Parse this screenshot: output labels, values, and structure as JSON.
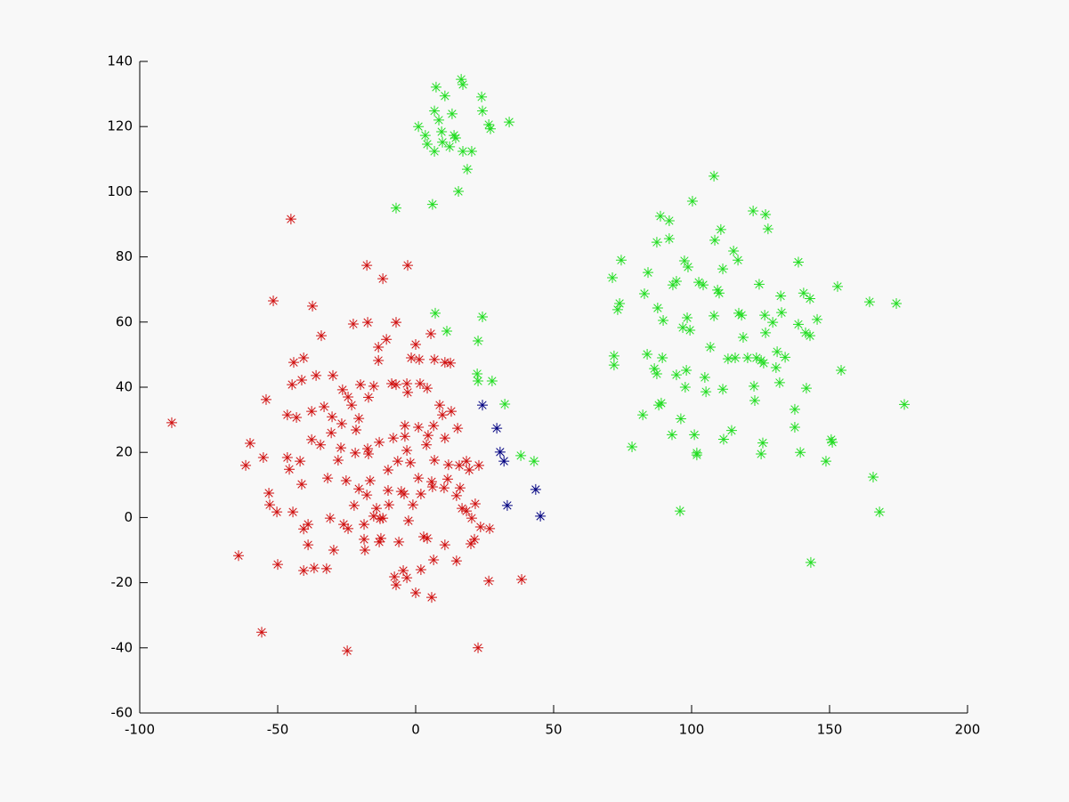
{
  "chart_data": {
    "type": "scatter",
    "xlim": [
      -100,
      200
    ],
    "xticks": [
      -100,
      -50,
      0,
      50,
      100,
      150,
      200
    ],
    "ylim": [
      -60,
      140
    ],
    "yticks": [
      -60,
      -40,
      -20,
      0,
      20,
      40,
      60,
      80,
      100,
      120,
      140
    ],
    "grid": false,
    "series": [
      {
        "color": "#d01010",
        "x": [
          -88.4,
          -45.2,
          -51.6,
          -37.4,
          -17.7,
          -11.9,
          -2.9,
          -22.6,
          -17.4,
          -34.2,
          -7.1,
          5.5,
          0,
          -13.5,
          -10.6,
          -13.5,
          -1.6,
          1.3,
          6.8,
          10.6,
          12.6,
          -40.6,
          -36.1,
          -41.3,
          -44.8,
          -44.2,
          -30.0,
          -26.5,
          -23.2,
          -20.6,
          -17.1,
          -15.2,
          -8.7,
          -7.1,
          -3.2,
          -2.9,
          1.6,
          4.2,
          8.7,
          9.7,
          12.9,
          15.2,
          6.5,
          4.5,
          1.0,
          -3.9,
          -3.9,
          -8.1,
          -13.2,
          -17.4,
          -21.6,
          -26.8,
          -30.3,
          -33.2,
          -37.7,
          -43.2,
          -46.5,
          -54.2,
          -60.0,
          -61.6,
          -55.2,
          -46.5,
          -41.9,
          -37.7,
          -34.5,
          -28.1,
          -31.9,
          -41.3,
          -45.8,
          -53.2,
          -50.3,
          -52.9,
          -44.5,
          -39.0,
          -40.6,
          -39.0,
          -31.0,
          -26.1,
          -22.3,
          -18.7,
          -18.7,
          -15.2,
          -12.6,
          -6.1,
          -2.6,
          -1.0,
          -4.2,
          1.9,
          5.8,
          11.6,
          14.8,
          16.8,
          20.3,
          23.5,
          21.3,
          20.0,
          10.6,
          6.5,
          2.9,
          1.9,
          -4.5,
          -7.1,
          -7.7,
          -3.2,
          4.2,
          14.8,
          26.8,
          26.5,
          38.4,
          22.6,
          0,
          5.8,
          -13.2,
          -12.9,
          -18.4,
          -24.5,
          -29.7,
          -32.3,
          -40.6,
          -36.8,
          -50.0,
          -64.2,
          -55.8,
          -24.8,
          -11.9,
          -9.7,
          -14.2,
          -17.7,
          -20.6,
          -25.2,
          -21.9,
          -17.1,
          -10.0,
          -6.5,
          -3.2,
          -5.2,
          -1.9,
          6.1,
          10.3,
          15.8,
          18.4,
          22.9,
          19.4,
          21.6,
          18.4,
          16.1,
          11.9,
          6.8,
          10.6,
          3.9,
          1.0,
          -10.0,
          -16.5,
          -27.1,
          -30.6,
          -24.5,
          -20.0
        ],
        "values": [
          29.1,
          91.6,
          66.5,
          64.9,
          77.4,
          73.3,
          77.4,
          59.4,
          59.9,
          55.8,
          59.9,
          56.4,
          53.1,
          52.3,
          54.7,
          48.2,
          49.0,
          48.5,
          48.5,
          47.6,
          47.4,
          49.0,
          43.6,
          42.2,
          40.8,
          47.6,
          43.6,
          39.2,
          34.5,
          30.4,
          36.9,
          40.3,
          41.1,
          40.8,
          41.1,
          38.4,
          41.1,
          39.7,
          34.5,
          31.5,
          32.6,
          27.4,
          28.2,
          25.2,
          27.7,
          28.2,
          24.9,
          24.4,
          23.1,
          21.1,
          26.9,
          28.8,
          30.9,
          34.0,
          32.6,
          30.7,
          31.5,
          36.2,
          22.8,
          16.0,
          18.4,
          18.4,
          17.3,
          23.9,
          22.3,
          17.6,
          12.1,
          10.2,
          14.8,
          7.5,
          1.7,
          3.9,
          1.7,
          -2.1,
          -3.5,
          -8.4,
          -0.2,
          -2.1,
          3.7,
          -2.1,
          -6.7,
          0.4,
          -6.4,
          -7.5,
          -1.0,
          3.9,
          7.2,
          7.2,
          11.0,
          11.8,
          6.7,
          2.8,
          -0.2,
          -2.9,
          -6.7,
          -8.1,
          -8.4,
          -13.0,
          -5.9,
          -16.0,
          -16.3,
          -20.7,
          -18.2,
          -18.5,
          -6.4,
          -13.3,
          -3.4,
          -19.5,
          -19.0,
          -40.0,
          -23.1,
          -24.5,
          -7.5,
          -0.4,
          -10.0,
          -3.4,
          -10.0,
          -15.7,
          -16.3,
          -15.5,
          -14.4,
          -11.7,
          -35.2,
          -40.9,
          -0.2,
          3.9,
          2.8,
          6.9,
          8.8,
          11.3,
          19.8,
          19.5,
          14.6,
          17.3,
          20.6,
          8.0,
          16.8,
          9.4,
          9.1,
          16.0,
          17.3,
          16.0,
          14.6,
          4.2,
          2.0,
          9.1,
          16.2,
          17.6,
          24.4,
          22.3,
          12.1,
          8.3,
          11.3,
          21.4,
          26.0,
          37.0,
          40.8
        ]
      },
      {
        "color": "#22dd22",
        "x": [
          7.4,
          16.5,
          17.1,
          23.9,
          33.9,
          26.5,
          1.0,
          3.5,
          8.4,
          9.4,
          13.2,
          14.5,
          17.1,
          20.3,
          12.3,
          6.8,
          4.2,
          18.7,
          15.5,
          13.9,
          10.6,
          6.8,
          24.2,
          27.1,
          9.7,
          -7.1,
          6.1,
          7.1,
          11.3,
          22.6,
          24.2,
          22.3,
          22.6,
          27.7,
          32.3,
          38.1,
          42.9,
          108.1,
          100.3,
          110.6,
          108.4,
          88.7,
          91.9,
          122.3,
          126.8,
          127.7,
          115.2,
          116.8,
          111.3,
          74.5,
          71.3,
          84.2,
          73.2,
          73.9,
          82.9,
          93.2,
          94.5,
          98.7,
          102.6,
          104.2,
          109.4,
          110.0,
          124.5,
          132.3,
          138.7,
          140.6,
          142.9,
          152.9,
          164.5,
          174.2,
          91.9,
          87.4,
          97.4,
          87.7,
          89.7,
          98.4,
          99.4,
          96.8,
          108.1,
          117.1,
          118.1,
          126.5,
          132.6,
          129.4,
          126.8,
          118.7,
          131.0,
          133.9,
          138.7,
          141.3,
          145.5,
          142.9,
          154.2,
          71.9,
          71.9,
          83.9,
          89.4,
          86.5,
          87.4,
          94.5,
          97.7,
          98.1,
          104.8,
          105.2,
          111.3,
          113.2,
          106.8,
          115.8,
          120.3,
          123.5,
          125.2,
          122.6,
          122.9,
          130.6,
          131.9,
          137.4,
          137.4,
          141.6,
          88.1,
          89.0,
          82.3,
          78.4,
          92.9,
          96.1,
          101.0,
          111.6,
          114.5,
          125.8,
          125.2,
          139.4,
          148.7,
          150.6,
          151.0,
          101.9,
          101.9,
          95.8,
          165.8,
          168.1,
          143.2,
          177.1,
          126.1
        ],
        "values": [
          132.1,
          134.5,
          132.9,
          129.1,
          121.4,
          120.6,
          120.0,
          117.3,
          122.0,
          118.4,
          123.9,
          116.5,
          112.4,
          112.4,
          113.8,
          112.4,
          114.6,
          106.9,
          100.1,
          117.3,
          129.4,
          124.8,
          124.8,
          119.3,
          115.2,
          95.0,
          96.1,
          62.7,
          57.2,
          54.2,
          61.6,
          44.1,
          41.9,
          41.9,
          34.8,
          19.0,
          17.3,
          104.8,
          97.1,
          88.4,
          85.1,
          92.5,
          91.1,
          94.1,
          93.0,
          88.6,
          81.8,
          79.0,
          76.3,
          79.0,
          73.6,
          75.2,
          63.8,
          65.7,
          68.7,
          71.4,
          72.5,
          76.9,
          72.2,
          71.4,
          69.8,
          68.9,
          71.6,
          68.0,
          78.4,
          68.9,
          67.2,
          70.9,
          66.2,
          65.7,
          85.6,
          84.5,
          78.8,
          64.3,
          60.5,
          61.3,
          57.5,
          58.3,
          61.9,
          62.7,
          62.1,
          62.1,
          62.9,
          59.9,
          56.7,
          55.3,
          50.9,
          49.2,
          59.3,
          56.7,
          60.8,
          55.8,
          45.2,
          46.8,
          49.6,
          50.1,
          49.0,
          45.7,
          44.1,
          43.8,
          40.0,
          45.2,
          43.0,
          38.6,
          39.4,
          48.7,
          52.3,
          49.0,
          49.0,
          49.0,
          48.2,
          40.3,
          35.9,
          46.0,
          41.4,
          33.2,
          27.7,
          39.7,
          34.5,
          35.1,
          31.5,
          21.7,
          25.4,
          30.3,
          25.4,
          24.0,
          26.7,
          22.9,
          19.5,
          20.0,
          17.3,
          23.9,
          23.1,
          19.8,
          19.2,
          2.0,
          12.4,
          1.7,
          -13.8,
          34.7,
          47.4
        ]
      },
      {
        "color": "#000080",
        "x": [
          24.2,
          29.4,
          30.6,
          32.0,
          33.2,
          43.5,
          45.2
        ],
        "values": [
          34.5,
          27.4,
          20.1,
          17.3,
          3.7,
          8.6,
          0.4
        ]
      }
    ]
  }
}
